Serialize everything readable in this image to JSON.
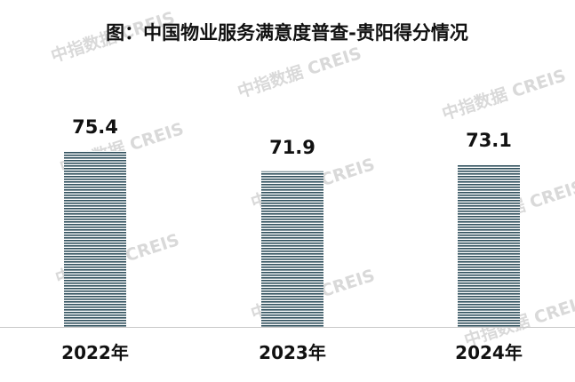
{
  "chart_data": {
    "type": "bar",
    "title": "图：中国物业服务满意度普查-贵阳得分情况",
    "categories": [
      "2022年",
      "2023年",
      "2024年"
    ],
    "values": [
      75.4,
      71.9,
      73.1
    ],
    "data_labels": [
      "75.4",
      "71.9",
      "73.1"
    ],
    "ylim": [
      0,
      80
    ],
    "grid": false,
    "legend": "none",
    "bar_color": "#2e4f5c"
  },
  "watermark": "中指数据 CREIS"
}
